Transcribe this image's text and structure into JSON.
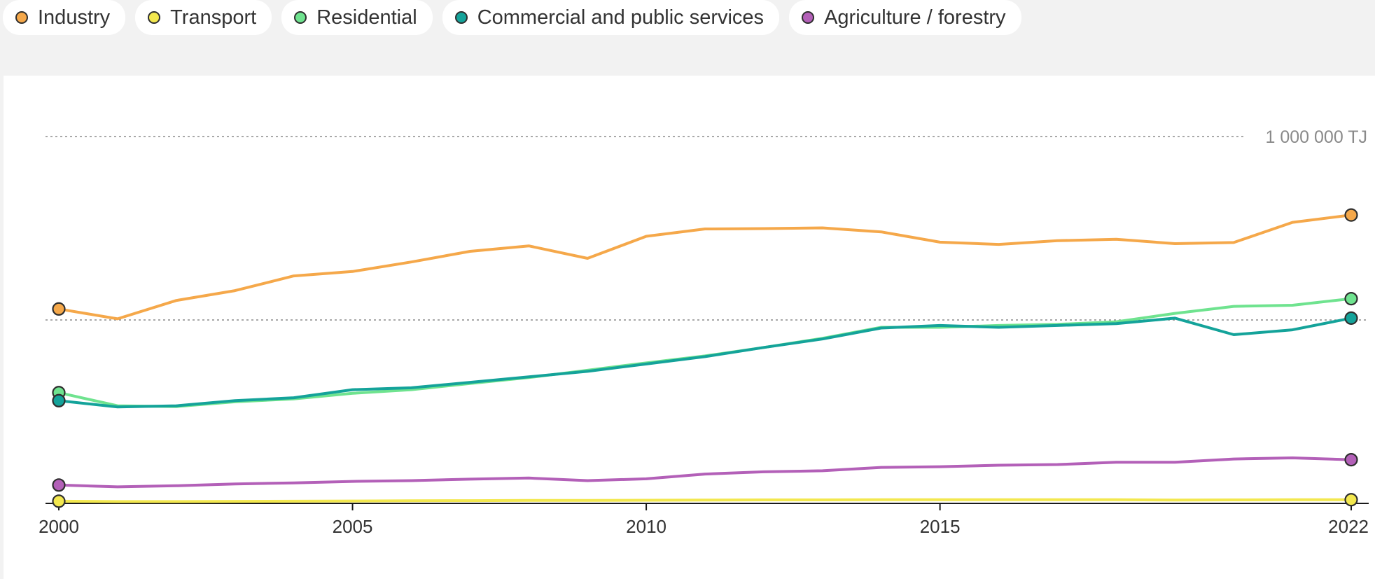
{
  "legend": [
    {
      "label": "Industry",
      "color": "#f5a84a"
    },
    {
      "label": "Transport",
      "color": "#f3e84f"
    },
    {
      "label": "Residential",
      "color": "#6fe38f"
    },
    {
      "label": "Commercial and public services",
      "color": "#14a39a"
    },
    {
      "label": "Agriculture / forestry",
      "color": "#b360b8"
    }
  ],
  "chart_data": {
    "type": "line",
    "x": [
      2000,
      2001,
      2002,
      2003,
      2004,
      2005,
      2006,
      2007,
      2008,
      2009,
      2010,
      2011,
      2012,
      2013,
      2014,
      2015,
      2016,
      2017,
      2018,
      2019,
      2020,
      2021,
      2022
    ],
    "ylim": [
      0,
      1000000
    ],
    "gridlines": [
      500000,
      1000000
    ],
    "gridline_label": "1 000 000 TJ",
    "xticks": [
      "2000",
      "2005",
      "2010",
      "2015",
      "2022"
    ],
    "grid": true,
    "legend_position": "top",
    "series": [
      {
        "name": "Industry",
        "color": "#f5a84a",
        "values": [
          530000,
          503000,
          553000,
          580000,
          620000,
          632000,
          658000,
          687000,
          702000,
          668000,
          728000,
          748000,
          749000,
          751000,
          740000,
          712000,
          706000,
          716000,
          720000,
          708000,
          711000,
          766000,
          786000
        ]
      },
      {
        "name": "Transport",
        "color": "#f3e84f",
        "values": [
          6000,
          5000,
          5000,
          5500,
          6000,
          6500,
          7000,
          7500,
          8000,
          8000,
          8500,
          9000,
          9500,
          9500,
          10000,
          10000,
          10000,
          10000,
          10000,
          9000,
          9500,
          10000,
          10000
        ]
      },
      {
        "name": "Residential",
        "color": "#6fe38f",
        "values": [
          302000,
          266000,
          264000,
          277000,
          285000,
          300000,
          310000,
          327000,
          343000,
          363000,
          383000,
          402000,
          425000,
          450000,
          480000,
          480000,
          485000,
          488000,
          495000,
          518000,
          537000,
          540000,
          558000
        ]
      },
      {
        "name": "Commercial and public services",
        "color": "#14a39a",
        "values": [
          280000,
          263000,
          266000,
          280000,
          288000,
          310000,
          315000,
          330000,
          345000,
          360000,
          380000,
          400000,
          425000,
          448000,
          478000,
          485000,
          480000,
          485000,
          490000,
          505000,
          460000,
          473000,
          505000
        ]
      },
      {
        "name": "Agriculture / forestry",
        "color": "#b360b8",
        "values": [
          50000,
          45000,
          48000,
          53000,
          56000,
          60000,
          62000,
          66000,
          69000,
          62000,
          67000,
          80000,
          86000,
          89000,
          98000,
          100000,
          104000,
          106000,
          112000,
          112000,
          121000,
          124000,
          119000
        ]
      }
    ]
  }
}
